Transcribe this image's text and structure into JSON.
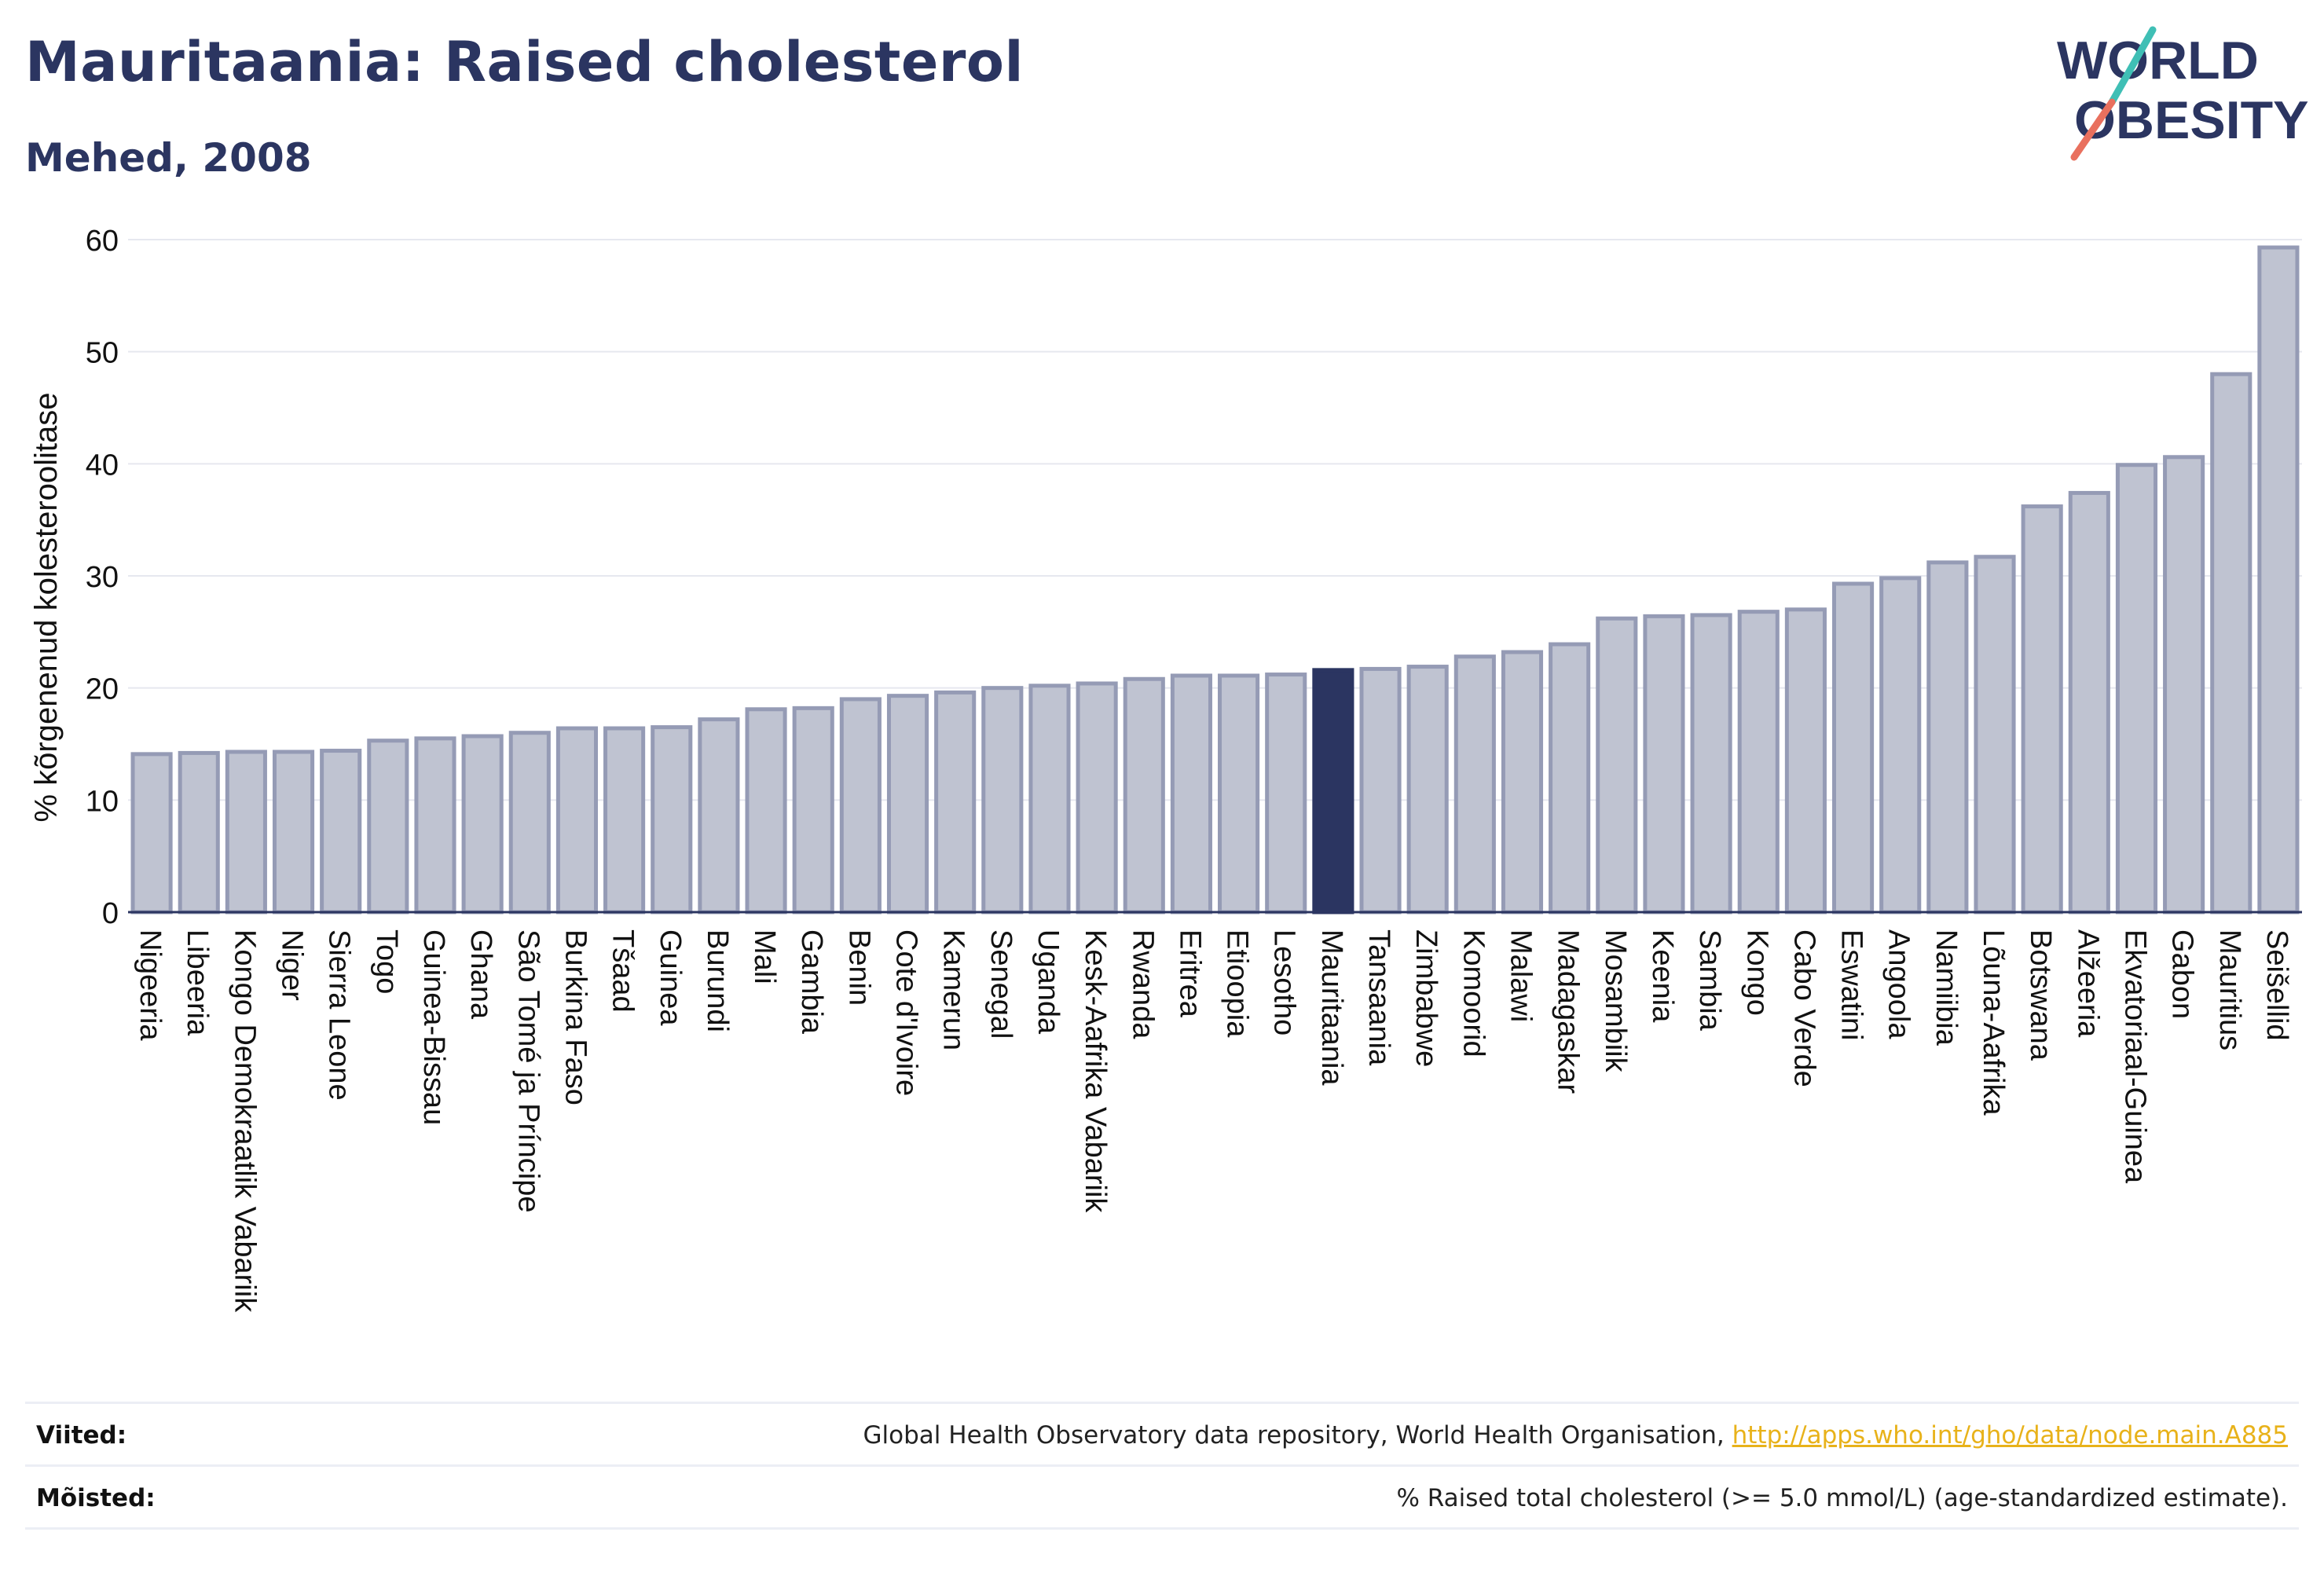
{
  "header": {
    "title": "Mauritaania: Raised cholesterol",
    "subtitle": "Mehed, 2008"
  },
  "logo": {
    "line1": "WORLD",
    "line2": "OBESITY"
  },
  "chart_data": {
    "type": "bar",
    "ylabel": "% kõrgenenud kolesteroolitase",
    "ylim": [
      0,
      60
    ],
    "yticks": [
      0,
      10,
      20,
      30,
      40,
      50,
      60
    ],
    "grid": true,
    "highlight": "Mauritaania",
    "colors": {
      "bar": "#bfc3d1",
      "bar_edge": "#959bb5",
      "highlight": "#2b3561",
      "grid": "#e6e8ef",
      "axis": "#2b3561"
    },
    "categories": [
      "Nigeeria",
      "Libeeria",
      "Kongo Demokraatlik Vabariik",
      "Niger",
      "Sierra Leone",
      "Togo",
      "Guinea-Bissau",
      "Ghana",
      "São Tomé ja Príncipe",
      "Burkina Faso",
      "Tšaad",
      "Guinea",
      "Burundi",
      "Mali",
      "Gambia",
      "Benin",
      "Cote d'Ivoire",
      "Kamerun",
      "Senegal",
      "Uganda",
      "Kesk-Aafrika Vabariik",
      "Rwanda",
      "Eritrea",
      "Etioopia",
      "Lesotho",
      "Mauritaania",
      "Tansaania",
      "Zimbabwe",
      "Komoorid",
      "Malawi",
      "Madagaskar",
      "Mosambiik",
      "Keenia",
      "Sambia",
      "Kongo",
      "Cabo Verde",
      "Eswatini",
      "Angoola",
      "Namiibia",
      "Lõuna-Aafrika",
      "Botswana",
      "Alžeeria",
      "Ekvatoriaal-Guinea",
      "Gabon",
      "Mauritius",
      "Seišellid"
    ],
    "values": [
      14.1,
      14.2,
      14.3,
      14.3,
      14.4,
      15.3,
      15.5,
      15.7,
      16.0,
      16.4,
      16.4,
      16.5,
      17.2,
      18.1,
      18.2,
      19.0,
      19.3,
      19.6,
      20.0,
      20.2,
      20.4,
      20.8,
      21.1,
      21.1,
      21.2,
      21.6,
      21.7,
      21.9,
      22.8,
      23.2,
      23.9,
      26.2,
      26.4,
      26.5,
      26.8,
      27.0,
      29.3,
      29.8,
      31.2,
      31.7,
      36.2,
      37.4,
      39.9,
      40.6,
      48.0,
      59.3
    ]
  },
  "footer": {
    "sources_label": "Viited:",
    "sources_text": "Global Health Observatory data repository, World Health Organisation, ",
    "sources_link": "http://apps.who.int/gho/data/node.main.A885",
    "definitions_label": "Mõisted:",
    "definitions_text": "% Raised total cholesterol (>= 5.0 mmol/L) (age-standardized estimate)."
  }
}
